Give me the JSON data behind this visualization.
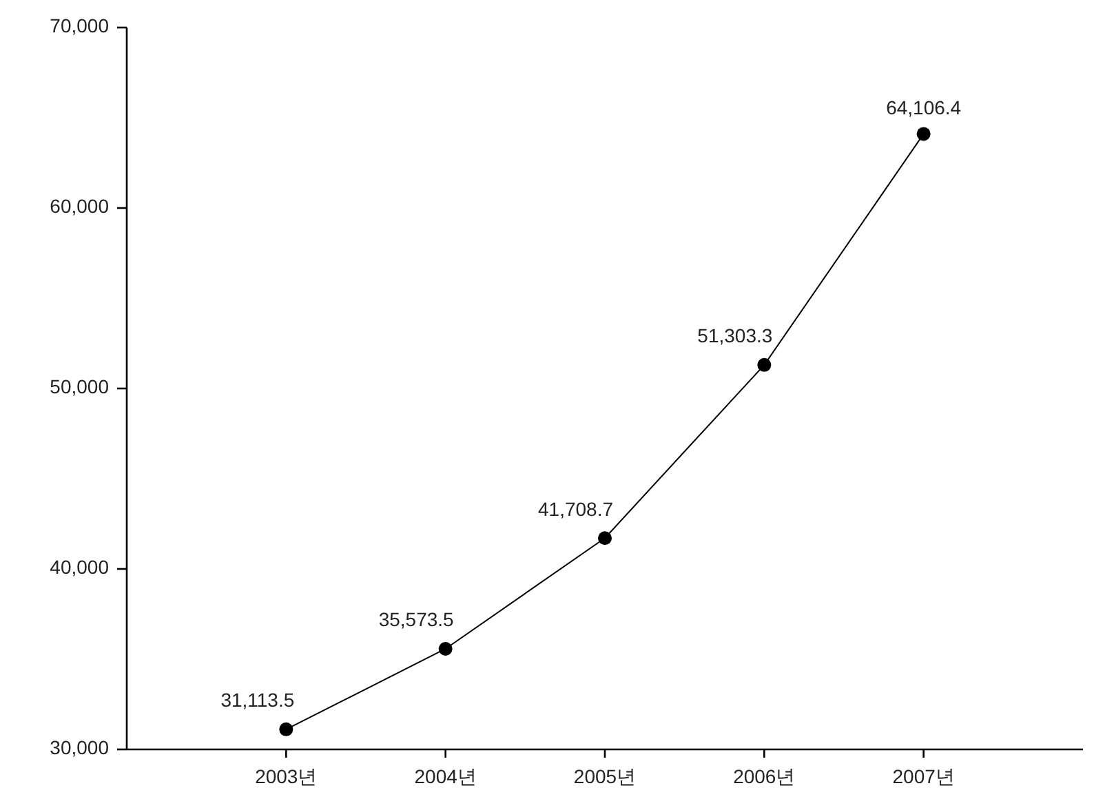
{
  "chart_data": {
    "type": "line",
    "categories": [
      "2003년",
      "2004년",
      "2005년",
      "2006년",
      "2007년"
    ],
    "values": [
      31113.5,
      35573.5,
      41708.7,
      51303.3,
      64106.4
    ],
    "value_labels": [
      "31,113.5",
      "35,573.5",
      "41,708.7",
      "51,303.3",
      "64,106.4"
    ],
    "color": "#000000",
    "marker": "circle",
    "line_style": "solid",
    "ylim": [
      30000,
      70000
    ],
    "yticks": [
      {
        "value": 30000,
        "label": "30,000"
      },
      {
        "value": 40000,
        "label": "40,000"
      },
      {
        "value": 50000,
        "label": "50,000"
      },
      {
        "value": 60000,
        "label": "60,000"
      },
      {
        "value": 70000,
        "label": "70,000"
      }
    ]
  }
}
